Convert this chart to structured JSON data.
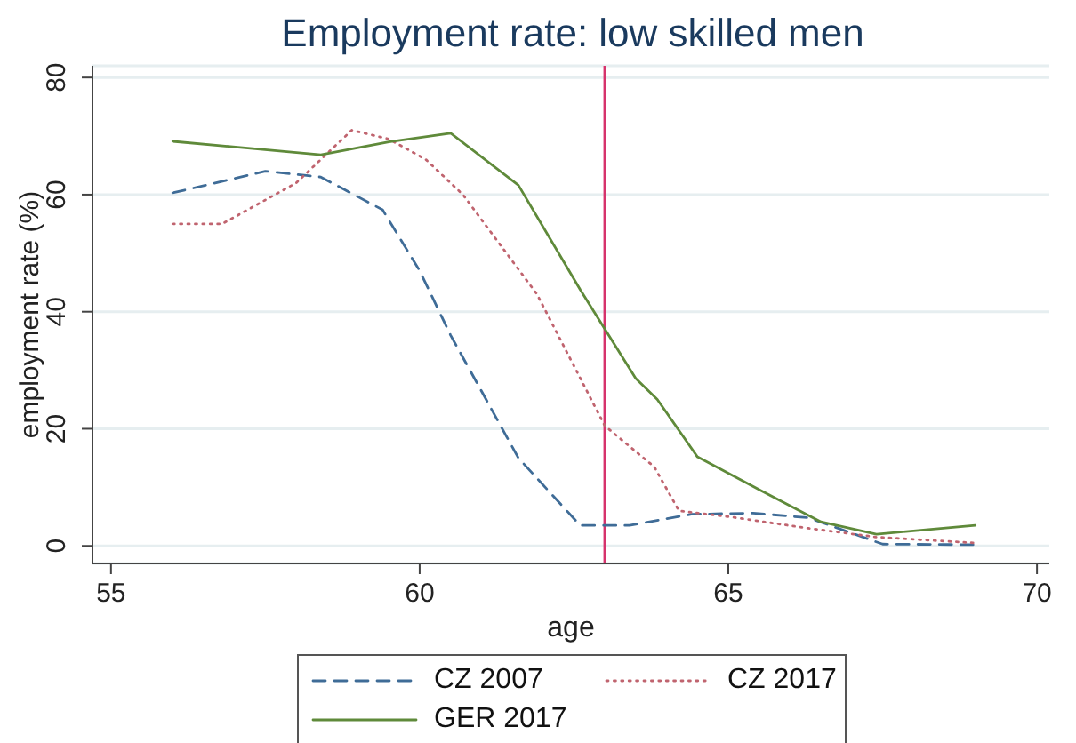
{
  "chart_data": {
    "type": "line",
    "title": "Employment rate: low skilled men",
    "xlabel": "age",
    "ylabel": "employment rate (%)",
    "xlim": [
      54.7,
      70.2
    ],
    "xticks": [
      55,
      60,
      65,
      70
    ],
    "ylim": [
      -3,
      82
    ],
    "yticks": [
      0,
      20,
      40,
      60,
      80
    ],
    "grid": "y",
    "legend": "bottom",
    "marker": "none",
    "ref_lines": [
      {
        "axis": "x",
        "value": 63,
        "color": "#d6336c"
      }
    ],
    "series": [
      {
        "name": "CZ 2007",
        "color": "#3f6c97",
        "line_style": "dashed",
        "x": [
          56,
          57.5,
          58.4,
          59.4,
          60,
          60.5,
          61.6,
          62.6,
          63.4,
          64.4,
          65.4,
          66.3,
          67.5,
          69
        ],
        "values": [
          60.3,
          64,
          63,
          57.4,
          47,
          36,
          15,
          3.5,
          3.5,
          5.4,
          5.6,
          4.8,
          0.3,
          0.2
        ]
      },
      {
        "name": "CZ 2017",
        "color": "#c0646f",
        "line_style": "dotted",
        "x": [
          56,
          56.8,
          58,
          58.9,
          59.5,
          60.1,
          60.7,
          61.9,
          63,
          63.8,
          64.2,
          65,
          66.3,
          67.4,
          69
        ],
        "values": [
          55,
          55,
          62,
          71,
          69.5,
          66,
          60,
          43,
          20.5,
          13.5,
          6,
          5,
          3,
          1.5,
          0.5
        ]
      },
      {
        "name": "GER 2017",
        "color": "#5f8a3a",
        "line_style": "solid",
        "x": [
          56,
          58.4,
          59.5,
          60.5,
          61.6,
          62.6,
          63.5,
          63.85,
          64.5,
          65.5,
          66.5,
          67.4,
          69
        ],
        "values": [
          69.1,
          66.8,
          69,
          70.5,
          61.6,
          43.8,
          28.6,
          25,
          15.2,
          9.6,
          4.1,
          2,
          3.5
        ]
      }
    ]
  }
}
